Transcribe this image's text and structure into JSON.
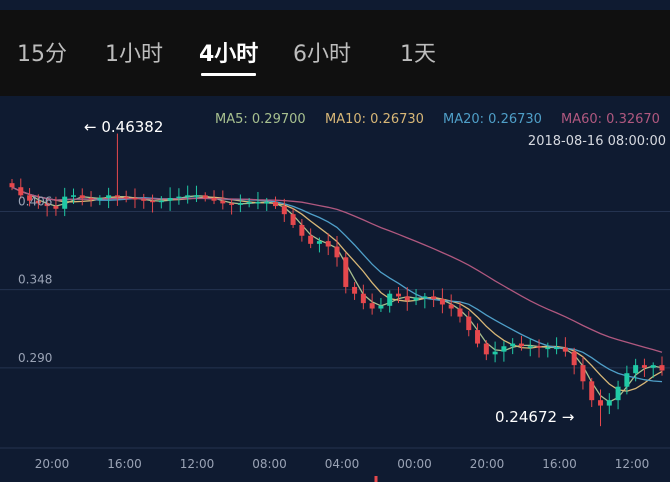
{
  "tabs": [
    {
      "label": "15分",
      "active": false
    },
    {
      "label": "1小时",
      "active": false
    },
    {
      "label": "4小时",
      "active": true
    },
    {
      "label": "6小时",
      "active": false
    },
    {
      "label": "1天",
      "active": false
    }
  ],
  "legend": {
    "ma5": {
      "label": "MA5: 0.29700",
      "color": "#a7c08f"
    },
    "ma10": {
      "label": "MA10: 0.26730",
      "color": "#d8b777"
    },
    "ma20": {
      "label": "MA20: 0.26730",
      "color": "#4f9fc8"
    },
    "ma60": {
      "label": "MA60: 0.32670",
      "color": "#b0587f"
    },
    "datetime": "2018-08-16 08:00:00"
  },
  "colors": {
    "up": "#20c9a6",
    "down": "#e5484d",
    "background": "#0f1b31",
    "grid": "#243350"
  },
  "chart_data": {
    "type": "candlestick",
    "y_ticks": [
      "0.406",
      "0.348",
      "0.290"
    ],
    "y_tick_values": [
      0.406,
      0.348,
      0.29
    ],
    "x_ticks": [
      "20:00",
      "16:00",
      "12:00",
      "08:00",
      "04:00",
      "00:00",
      "20:00",
      "16:00",
      "12:00"
    ],
    "max_marker": {
      "label": "← 0.46382",
      "value": 0.46382
    },
    "min_marker": {
      "label": "0.24672 →",
      "value": 0.24672
    },
    "ylim": [
      0.232,
      0.462
    ],
    "close": [
      0.424,
      0.418,
      0.414,
      0.412,
      0.41,
      0.408,
      0.417,
      0.418,
      0.416,
      0.415,
      0.416,
      0.418,
      0.417,
      0.416,
      0.415,
      0.414,
      0.413,
      0.414,
      0.416,
      0.417,
      0.418,
      0.418,
      0.416,
      0.414,
      0.412,
      0.411,
      0.412,
      0.413,
      0.413,
      0.413,
      0.41,
      0.404,
      0.396,
      0.388,
      0.382,
      0.384,
      0.38,
      0.372,
      0.35,
      0.345,
      0.338,
      0.334,
      0.336,
      0.345,
      0.343,
      0.34,
      0.342,
      0.343,
      0.341,
      0.337,
      0.334,
      0.328,
      0.318,
      0.308,
      0.3,
      0.302,
      0.306,
      0.308,
      0.306,
      0.306,
      0.305,
      0.305,
      0.305,
      0.302,
      0.292,
      0.28,
      0.266,
      0.262,
      0.266,
      0.276,
      0.286,
      0.292,
      0.29,
      0.292,
      0.288
    ]
  }
}
